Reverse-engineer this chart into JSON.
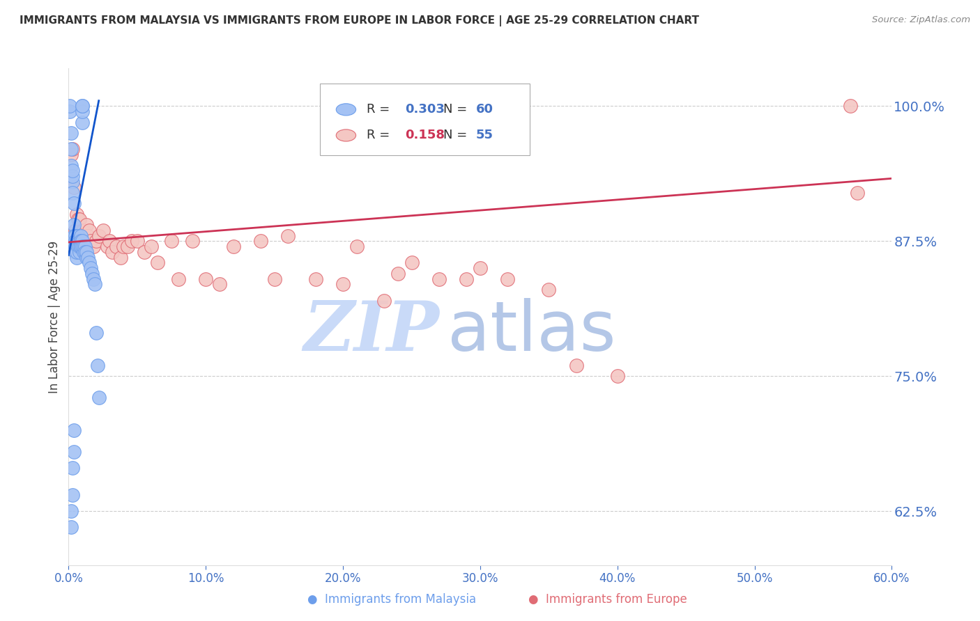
{
  "title": "IMMIGRANTS FROM MALAYSIA VS IMMIGRANTS FROM EUROPE IN LABOR FORCE | AGE 25-29 CORRELATION CHART",
  "source": "Source: ZipAtlas.com",
  "ylabel": "In Labor Force | Age 25-29",
  "x_min": 0.0,
  "x_max": 0.6,
  "y_min": 0.575,
  "y_max": 1.035,
  "yticks": [
    0.625,
    0.75,
    0.875,
    1.0
  ],
  "ytick_labels": [
    "62.5%",
    "75.0%",
    "87.5%",
    "100.0%"
  ],
  "xticks": [
    0.0,
    0.1,
    0.2,
    0.3,
    0.4,
    0.5,
    0.6
  ],
  "xtick_labels": [
    "0.0%",
    "10.0%",
    "20.0%",
    "30.0%",
    "40.0%",
    "50.0%",
    "60.0%"
  ],
  "malaysia_color": "#a4c2f4",
  "europe_color": "#f4c7c3",
  "malaysia_edge_color": "#6d9eeb",
  "europe_edge_color": "#e06c75",
  "malaysia_line_color": "#1155cc",
  "europe_line_color": "#cc3355",
  "watermark": "ZIPatlas",
  "watermark_color_zip": "#c9daf8",
  "watermark_color_atlas": "#b4c7e7",
  "background_color": "#ffffff",
  "grid_color": "#cccccc",
  "axis_label_color": "#4472c4",
  "title_color": "#333333",
  "source_color": "#888888",
  "legend_R1": "0.303",
  "legend_N1": "60",
  "legend_R2": "0.158",
  "legend_N2": "55",
  "legend_label1": "Immigrants from Malaysia",
  "legend_label2": "Immigrants from Europe",
  "malaysia_x": [
    0.001,
    0.001,
    0.002,
    0.002,
    0.002,
    0.003,
    0.003,
    0.003,
    0.003,
    0.004,
    0.004,
    0.004,
    0.005,
    0.005,
    0.005,
    0.005,
    0.005,
    0.005,
    0.006,
    0.006,
    0.006,
    0.006,
    0.007,
    0.007,
    0.007,
    0.008,
    0.008,
    0.008,
    0.009,
    0.009,
    0.009,
    0.009,
    0.009,
    0.01,
    0.01,
    0.01,
    0.01,
    0.01,
    0.01,
    0.011,
    0.011,
    0.012,
    0.012,
    0.013,
    0.013,
    0.014,
    0.015,
    0.016,
    0.017,
    0.018,
    0.019,
    0.02,
    0.021,
    0.022,
    0.002,
    0.002,
    0.003,
    0.003,
    0.004,
    0.004
  ],
  "malaysia_y": [
    0.995,
    1.0,
    0.975,
    0.96,
    0.945,
    0.93,
    0.935,
    0.94,
    0.92,
    0.91,
    0.89,
    0.88,
    0.87,
    0.875,
    0.88,
    0.875,
    0.87,
    0.865,
    0.87,
    0.875,
    0.86,
    0.865,
    0.88,
    0.875,
    0.87,
    0.875,
    0.865,
    0.87,
    0.875,
    0.87,
    0.88,
    0.875,
    0.87,
    0.985,
    0.995,
    1.0,
    1.0,
    0.875,
    0.87,
    0.865,
    0.87,
    0.87,
    0.865,
    0.86,
    0.865,
    0.86,
    0.855,
    0.85,
    0.845,
    0.84,
    0.835,
    0.79,
    0.76,
    0.73,
    0.625,
    0.61,
    0.64,
    0.665,
    0.68,
    0.7
  ],
  "europe_x": [
    0.002,
    0.003,
    0.004,
    0.005,
    0.006,
    0.007,
    0.008,
    0.009,
    0.01,
    0.011,
    0.012,
    0.013,
    0.014,
    0.015,
    0.016,
    0.018,
    0.02,
    0.022,
    0.025,
    0.028,
    0.03,
    0.032,
    0.035,
    0.038,
    0.04,
    0.043,
    0.046,
    0.05,
    0.055,
    0.06,
    0.065,
    0.075,
    0.08,
    0.09,
    0.1,
    0.11,
    0.12,
    0.14,
    0.15,
    0.16,
    0.18,
    0.2,
    0.21,
    0.23,
    0.24,
    0.25,
    0.27,
    0.29,
    0.3,
    0.32,
    0.35,
    0.37,
    0.4,
    0.57,
    0.575
  ],
  "europe_y": [
    0.955,
    0.96,
    0.925,
    0.885,
    0.9,
    0.895,
    0.895,
    0.88,
    0.885,
    0.885,
    0.88,
    0.89,
    0.88,
    0.885,
    0.875,
    0.87,
    0.875,
    0.88,
    0.885,
    0.87,
    0.875,
    0.865,
    0.87,
    0.86,
    0.87,
    0.87,
    0.875,
    0.875,
    0.865,
    0.87,
    0.855,
    0.875,
    0.84,
    0.875,
    0.84,
    0.835,
    0.87,
    0.875,
    0.84,
    0.88,
    0.84,
    0.835,
    0.87,
    0.82,
    0.845,
    0.855,
    0.84,
    0.84,
    0.85,
    0.84,
    0.83,
    0.76,
    0.75,
    1.0,
    0.92
  ],
  "mal_line_x0": 0.0,
  "mal_line_x1": 0.022,
  "mal_line_y0": 0.862,
  "mal_line_y1": 1.005,
  "eur_line_x0": 0.0,
  "eur_line_x1": 0.6,
  "eur_line_y0": 0.874,
  "eur_line_y1": 0.933
}
